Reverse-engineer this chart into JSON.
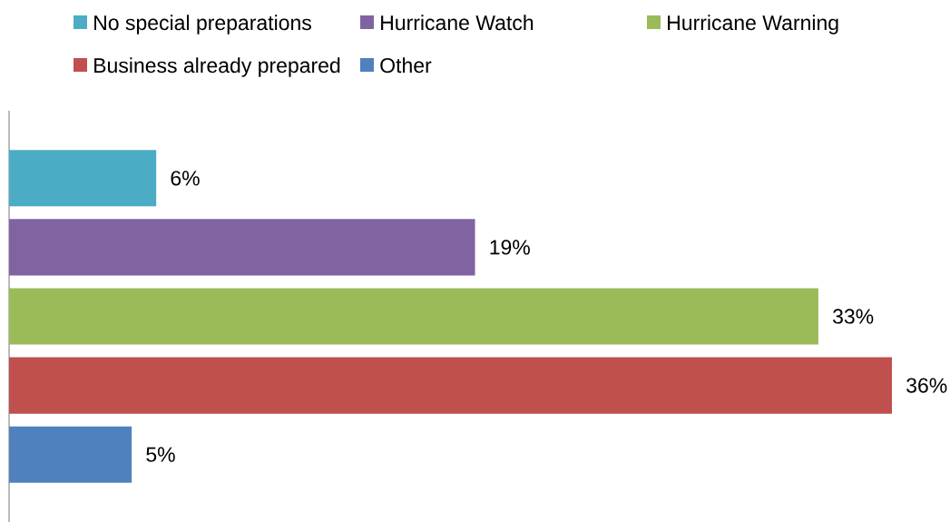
{
  "chart_data": {
    "type": "bar",
    "orientation": "horizontal",
    "categories": [
      null
    ],
    "series": [
      {
        "name": "No special preparations",
        "color": "#4bacc6",
        "values": [
          6
        ],
        "value_labels": [
          "6%"
        ]
      },
      {
        "name": "Hurricane Watch",
        "color": "#8064a2",
        "values": [
          19
        ],
        "value_labels": [
          "19%"
        ]
      },
      {
        "name": "Hurricane Warning",
        "color": "#9bbb59",
        "values": [
          33
        ],
        "value_labels": [
          "33%"
        ]
      },
      {
        "name": "Business already prepared",
        "color": "#c0504d",
        "values": [
          36
        ],
        "value_labels": [
          "36%"
        ]
      },
      {
        "name": "Other",
        "color": "#4f81bd",
        "values": [
          5
        ],
        "value_labels": [
          "5%"
        ]
      }
    ],
    "legend": "top"
  }
}
